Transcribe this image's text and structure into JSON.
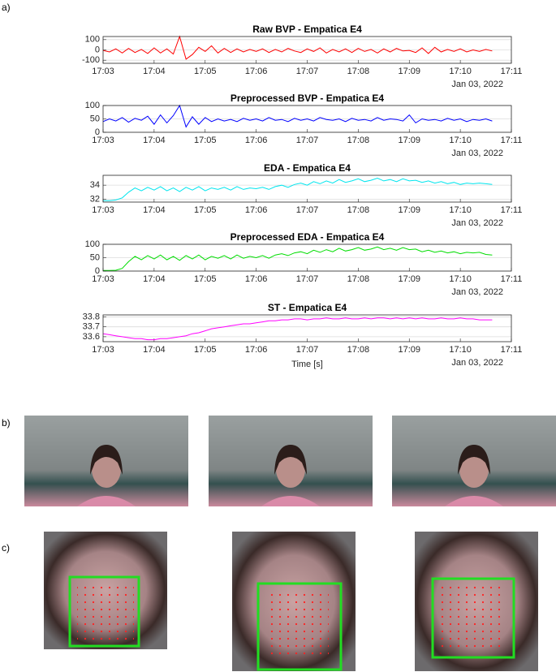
{
  "panel_labels": [
    "a)",
    "b)",
    "c)"
  ],
  "chart_data": [
    {
      "type": "line",
      "title": "Raw BVP - Empatica E4",
      "annotation": "Jan 03, 2022",
      "color": "#ff0000",
      "grid": true,
      "xlim": [
        1023,
        1031
      ],
      "xticks": [
        {
          "value": 1023,
          "label": "17:03"
        },
        {
          "value": 1024,
          "label": "17:04"
        },
        {
          "value": 1025,
          "label": "17:05"
        },
        {
          "value": 1026,
          "label": "17:06"
        },
        {
          "value": 1027,
          "label": "17:07"
        },
        {
          "value": 1028,
          "label": "17:08"
        },
        {
          "value": 1029,
          "label": "17:09"
        },
        {
          "value": 1030,
          "label": "17:10"
        },
        {
          "value": 1031,
          "label": "17:11"
        }
      ],
      "ylim": [
        -130,
        130
      ],
      "yticks": [
        -100,
        0,
        100
      ],
      "x": [
        1023,
        1023.125,
        1023.25,
        1023.375,
        1023.5,
        1023.625,
        1023.75,
        1023.875,
        1024,
        1024.125,
        1024.25,
        1024.375,
        1024.5,
        1024.625,
        1024.75,
        1024.875,
        1025,
        1025.125,
        1025.25,
        1025.375,
        1025.5,
        1025.625,
        1025.75,
        1025.875,
        1026,
        1026.125,
        1026.25,
        1026.375,
        1026.5,
        1026.625,
        1026.75,
        1026.875,
        1027,
        1027.125,
        1027.25,
        1027.375,
        1027.5,
        1027.625,
        1027.75,
        1027.875,
        1028,
        1028.125,
        1028.25,
        1028.375,
        1028.5,
        1028.625,
        1028.75,
        1028.875,
        1029,
        1029.125,
        1029.25,
        1029.375,
        1029.5,
        1029.625,
        1029.75,
        1029.875,
        1030,
        1030.125,
        1030.25,
        1030.375,
        1030.5,
        1030.625
      ],
      "values": [
        -5,
        -20,
        10,
        -30,
        15,
        -25,
        5,
        -35,
        20,
        -30,
        10,
        -40,
        130,
        -90,
        -45,
        25,
        -15,
        40,
        -30,
        15,
        -25,
        10,
        -20,
        5,
        -15,
        10,
        -25,
        5,
        -20,
        15,
        -10,
        -25,
        10,
        -15,
        20,
        -30,
        5,
        -20,
        10,
        -25,
        15,
        -15,
        5,
        -30,
        10,
        -20,
        15,
        -10,
        -5,
        -25,
        20,
        -35,
        25,
        -20,
        5,
        -15,
        10,
        -20,
        0,
        -15,
        5,
        -10
      ]
    },
    {
      "type": "line",
      "title": "Preprocessed BVP - Empatica E4",
      "annotation": "Jan 03, 2022",
      "color": "#0000ff",
      "grid": true,
      "xlim": [
        1023,
        1031
      ],
      "xticks": [
        {
          "value": 1023,
          "label": "17:03"
        },
        {
          "value": 1024,
          "label": "17:04"
        },
        {
          "value": 1025,
          "label": "17:05"
        },
        {
          "value": 1026,
          "label": "17:06"
        },
        {
          "value": 1027,
          "label": "17:07"
        },
        {
          "value": 1028,
          "label": "17:08"
        },
        {
          "value": 1029,
          "label": "17:09"
        },
        {
          "value": 1030,
          "label": "17:10"
        },
        {
          "value": 1031,
          "label": "17:11"
        }
      ],
      "ylim": [
        0,
        100
      ],
      "yticks": [
        0,
        50,
        100
      ],
      "x": [
        1023,
        1023.125,
        1023.25,
        1023.375,
        1023.5,
        1023.625,
        1023.75,
        1023.875,
        1024,
        1024.125,
        1024.25,
        1024.375,
        1024.5,
        1024.625,
        1024.75,
        1024.875,
        1025,
        1025.125,
        1025.25,
        1025.375,
        1025.5,
        1025.625,
        1025.75,
        1025.875,
        1026,
        1026.125,
        1026.25,
        1026.375,
        1026.5,
        1026.625,
        1026.75,
        1026.875,
        1027,
        1027.125,
        1027.25,
        1027.375,
        1027.5,
        1027.625,
        1027.75,
        1027.875,
        1028,
        1028.125,
        1028.25,
        1028.375,
        1028.5,
        1028.625,
        1028.75,
        1028.875,
        1029,
        1029.125,
        1029.25,
        1029.375,
        1029.5,
        1029.625,
        1029.75,
        1029.875,
        1030,
        1030.125,
        1030.25,
        1030.375,
        1030.5,
        1030.625
      ],
      "values": [
        40,
        50,
        42,
        55,
        38,
        52,
        45,
        60,
        30,
        65,
        35,
        62,
        100,
        20,
        58,
        30,
        55,
        40,
        50,
        42,
        48,
        40,
        52,
        45,
        50,
        42,
        55,
        45,
        48,
        40,
        52,
        45,
        50,
        42,
        55,
        48,
        45,
        50,
        40,
        52,
        45,
        48,
        42,
        55,
        45,
        50,
        48,
        42,
        65,
        35,
        50,
        45,
        48,
        42,
        52,
        45,
        50,
        40,
        48,
        45,
        50,
        42
      ]
    },
    {
      "type": "line",
      "title": "EDA - Empatica E4",
      "annotation": "Jan 03, 2022",
      "color": "#00e5ee",
      "grid": true,
      "xlim": [
        1023,
        1031
      ],
      "xticks": [
        {
          "value": 1023,
          "label": "17:03"
        },
        {
          "value": 1024,
          "label": "17:04"
        },
        {
          "value": 1025,
          "label": "17:05"
        },
        {
          "value": 1026,
          "label": "17:06"
        },
        {
          "value": 1027,
          "label": "17:07"
        },
        {
          "value": 1028,
          "label": "17:08"
        },
        {
          "value": 1029,
          "label": "17:09"
        },
        {
          "value": 1030,
          "label": "17:10"
        },
        {
          "value": 1031,
          "label": "17:11"
        }
      ],
      "ylim": [
        31.6,
        35.4
      ],
      "yticks": [
        32,
        34
      ],
      "x": [
        1023,
        1023.125,
        1023.25,
        1023.375,
        1023.5,
        1023.625,
        1023.75,
        1023.875,
        1024,
        1024.125,
        1024.25,
        1024.375,
        1024.5,
        1024.625,
        1024.75,
        1024.875,
        1025,
        1025.125,
        1025.25,
        1025.375,
        1025.5,
        1025.625,
        1025.75,
        1025.875,
        1026,
        1026.125,
        1026.25,
        1026.375,
        1026.5,
        1026.625,
        1026.75,
        1026.875,
        1027,
        1027.125,
        1027.25,
        1027.375,
        1027.5,
        1027.625,
        1027.75,
        1027.875,
        1028,
        1028.125,
        1028.25,
        1028.375,
        1028.5,
        1028.625,
        1028.75,
        1028.875,
        1029,
        1029.125,
        1029.25,
        1029.375,
        1029.5,
        1029.625,
        1029.75,
        1029.875,
        1030,
        1030.125,
        1030.25,
        1030.375,
        1030.5,
        1030.625
      ],
      "values": [
        31.8,
        31.8,
        31.9,
        32.2,
        33.0,
        33.6,
        33.2,
        33.7,
        33.3,
        33.8,
        33.2,
        33.6,
        33.1,
        33.7,
        33.3,
        33.8,
        33.2,
        33.6,
        33.4,
        33.7,
        33.3,
        33.8,
        33.4,
        33.6,
        33.5,
        33.7,
        33.4,
        33.8,
        34.0,
        33.7,
        34.1,
        34.3,
        34.0,
        34.5,
        34.2,
        34.6,
        34.3,
        34.8,
        34.4,
        34.6,
        34.9,
        34.5,
        34.7,
        35.0,
        34.6,
        34.8,
        34.5,
        34.9,
        34.6,
        34.7,
        34.4,
        34.6,
        34.3,
        34.5,
        34.2,
        34.4,
        34.1,
        34.3,
        34.2,
        34.3,
        34.2,
        34.1
      ]
    },
    {
      "type": "line",
      "title": "Preprocessed EDA - Empatica E4",
      "annotation": "Jan 03, 2022",
      "color": "#00dd00",
      "grid": true,
      "xlim": [
        1023,
        1031
      ],
      "xticks": [
        {
          "value": 1023,
          "label": "17:03"
        },
        {
          "value": 1024,
          "label": "17:04"
        },
        {
          "value": 1025,
          "label": "17:05"
        },
        {
          "value": 1026,
          "label": "17:06"
        },
        {
          "value": 1027,
          "label": "17:07"
        },
        {
          "value": 1028,
          "label": "17:08"
        },
        {
          "value": 1029,
          "label": "17:09"
        },
        {
          "value": 1030,
          "label": "17:10"
        },
        {
          "value": 1031,
          "label": "17:11"
        }
      ],
      "ylim": [
        0,
        100
      ],
      "yticks": [
        0,
        50,
        100
      ],
      "x": [
        1023,
        1023.125,
        1023.25,
        1023.375,
        1023.5,
        1023.625,
        1023.75,
        1023.875,
        1024,
        1024.125,
        1024.25,
        1024.375,
        1024.5,
        1024.625,
        1024.75,
        1024.875,
        1025,
        1025.125,
        1025.25,
        1025.375,
        1025.5,
        1025.625,
        1025.75,
        1025.875,
        1026,
        1026.125,
        1026.25,
        1026.375,
        1026.5,
        1026.625,
        1026.75,
        1026.875,
        1027,
        1027.125,
        1027.25,
        1027.375,
        1027.5,
        1027.625,
        1027.75,
        1027.875,
        1028,
        1028.125,
        1028.25,
        1028.375,
        1028.5,
        1028.625,
        1028.75,
        1028.875,
        1029,
        1029.125,
        1029.25,
        1029.375,
        1029.5,
        1029.625,
        1029.75,
        1029.875,
        1030,
        1030.125,
        1030.25,
        1030.375,
        1030.5,
        1030.625
      ],
      "values": [
        2,
        2,
        3,
        10,
        35,
        55,
        42,
        58,
        45,
        60,
        42,
        55,
        40,
        58,
        45,
        60,
        42,
        55,
        48,
        58,
        45,
        60,
        48,
        55,
        50,
        58,
        48,
        60,
        65,
        58,
        68,
        72,
        65,
        78,
        70,
        80,
        72,
        85,
        75,
        80,
        88,
        78,
        82,
        90,
        80,
        85,
        78,
        88,
        80,
        82,
        72,
        78,
        70,
        75,
        68,
        72,
        65,
        70,
        68,
        70,
        62,
        60
      ]
    },
    {
      "type": "line",
      "title": "ST - Empatica E4",
      "annotation": "Jan 03, 2022",
      "xlabel": "Time [s]",
      "color": "#ff00ff",
      "grid": true,
      "xlim": [
        1023,
        1031
      ],
      "xticks": [
        {
          "value": 1023,
          "label": "17:03"
        },
        {
          "value": 1024,
          "label": "17:04"
        },
        {
          "value": 1025,
          "label": "17:05"
        },
        {
          "value": 1026,
          "label": "17:06"
        },
        {
          "value": 1027,
          "label": "17:07"
        },
        {
          "value": 1028,
          "label": "17:08"
        },
        {
          "value": 1029,
          "label": "17:09"
        },
        {
          "value": 1030,
          "label": "17:10"
        },
        {
          "value": 1031,
          "label": "17:11"
        }
      ],
      "ylim": [
        33.55,
        33.82
      ],
      "yticks": [
        33.6,
        33.7,
        33.8
      ],
      "x": [
        1023,
        1023.125,
        1023.25,
        1023.375,
        1023.5,
        1023.625,
        1023.75,
        1023.875,
        1024,
        1024.125,
        1024.25,
        1024.375,
        1024.5,
        1024.625,
        1024.75,
        1024.875,
        1025,
        1025.125,
        1025.25,
        1025.375,
        1025.5,
        1025.625,
        1025.75,
        1025.875,
        1026,
        1026.125,
        1026.25,
        1026.375,
        1026.5,
        1026.625,
        1026.75,
        1026.875,
        1027,
        1027.125,
        1027.25,
        1027.375,
        1027.5,
        1027.625,
        1027.75,
        1027.875,
        1028,
        1028.125,
        1028.25,
        1028.375,
        1028.5,
        1028.625,
        1028.75,
        1028.875,
        1029,
        1029.125,
        1029.25,
        1029.375,
        1029.5,
        1029.625,
        1029.75,
        1029.875,
        1030,
        1030.125,
        1030.25,
        1030.375,
        1030.5,
        1030.625
      ],
      "values": [
        33.63,
        33.62,
        33.61,
        33.6,
        33.59,
        33.58,
        33.58,
        33.57,
        33.57,
        33.58,
        33.58,
        33.59,
        33.6,
        33.61,
        33.63,
        33.64,
        33.66,
        33.68,
        33.69,
        33.7,
        33.71,
        33.72,
        33.73,
        33.73,
        33.74,
        33.75,
        33.76,
        33.76,
        33.77,
        33.77,
        33.78,
        33.78,
        33.77,
        33.78,
        33.78,
        33.79,
        33.78,
        33.78,
        33.79,
        33.78,
        33.78,
        33.79,
        33.78,
        33.79,
        33.79,
        33.78,
        33.79,
        33.78,
        33.79,
        33.78,
        33.79,
        33.78,
        33.78,
        33.79,
        33.78,
        33.78,
        33.79,
        33.78,
        33.78,
        33.77,
        33.77,
        33.77
      ]
    }
  ]
}
